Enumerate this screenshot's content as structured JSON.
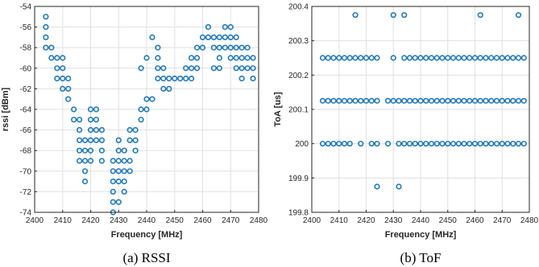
{
  "colors": {
    "marker": "#1f77b4",
    "axis": "#262626",
    "grid": "#dfdfdf"
  },
  "chart_data": [
    {
      "type": "scatter",
      "title": "",
      "caption": "(a) RSSI",
      "xlabel": "Frequency [MHz]",
      "ylabel": "rssi [dBm]",
      "xlim": [
        2400,
        2480
      ],
      "ylim": [
        -74,
        -54
      ],
      "xticks": [
        2400,
        2410,
        2420,
        2430,
        2440,
        2450,
        2460,
        2470,
        2480
      ],
      "yticks": [
        -74,
        -72,
        -70,
        -68,
        -66,
        -64,
        -62,
        -60,
        -58,
        -56,
        -54
      ],
      "grid": true,
      "series": [
        {
          "columns": [
            {
              "x": 2404,
              "y": [
                -55,
                -56,
                -57,
                -58
              ]
            },
            {
              "x": 2406,
              "y": [
                -58,
                -59
              ]
            },
            {
              "x": 2408,
              "y": [
                -59,
                -60,
                -61
              ]
            },
            {
              "x": 2410,
              "y": [
                -59,
                -60,
                -61,
                -62
              ]
            },
            {
              "x": 2412,
              "y": [
                -61,
                -62,
                -63
              ]
            },
            {
              "x": 2414,
              "y": [
                -64,
                -65
              ]
            },
            {
              "x": 2416,
              "y": [
                -65,
                -66,
                -67,
                -68,
                -69
              ]
            },
            {
              "x": 2418,
              "y": [
                -67,
                -68,
                -69,
                -70,
                -71
              ]
            },
            {
              "x": 2420,
              "y": [
                -64,
                -65,
                -66,
                -67,
                -68,
                -69
              ]
            },
            {
              "x": 2422,
              "y": [
                -64,
                -65,
                -66,
                -67
              ]
            },
            {
              "x": 2424,
              "y": [
                -66,
                -67,
                -68,
                -69
              ]
            },
            {
              "x": 2428,
              "y": [
                -69,
                -70,
                -71,
                -72,
                -73,
                -74
              ]
            },
            {
              "x": 2430,
              "y": [
                -67,
                -68,
                -69,
                -70,
                -71,
                -73
              ]
            },
            {
              "x": 2432,
              "y": [
                -68,
                -69,
                -70,
                -71,
                -72
              ]
            },
            {
              "x": 2434,
              "y": [
                -66,
                -67,
                -69,
                -70
              ]
            },
            {
              "x": 2436,
              "y": [
                -66,
                -67,
                -68
              ]
            },
            {
              "x": 2438,
              "y": [
                -60,
                -64,
                -65
              ]
            },
            {
              "x": 2440,
              "y": [
                -59,
                -63,
                -64
              ]
            },
            {
              "x": 2442,
              "y": [
                -57,
                -63
              ]
            },
            {
              "x": 2444,
              "y": [
                -58,
                -59,
                -60,
                -61
              ]
            },
            {
              "x": 2446,
              "y": [
                -60,
                -61,
                -62
              ]
            },
            {
              "x": 2448,
              "y": [
                -61,
                -62
              ]
            },
            {
              "x": 2450,
              "y": [
                -61
              ]
            },
            {
              "x": 2452,
              "y": [
                -61
              ]
            },
            {
              "x": 2454,
              "y": [
                -60,
                -61
              ]
            },
            {
              "x": 2456,
              "y": [
                -59,
                -60,
                -61
              ]
            },
            {
              "x": 2458,
              "y": [
                -58,
                -59,
                -60
              ]
            },
            {
              "x": 2460,
              "y": [
                -57,
                -58
              ]
            },
            {
              "x": 2462,
              "y": [
                -56,
                -57
              ]
            },
            {
              "x": 2464,
              "y": [
                -57,
                -58,
                -60
              ]
            },
            {
              "x": 2466,
              "y": [
                -57,
                -58,
                -59,
                -60
              ]
            },
            {
              "x": 2468,
              "y": [
                -56,
                -57,
                -58
              ]
            },
            {
              "x": 2470,
              "y": [
                -56,
                -57,
                -58,
                -59
              ]
            },
            {
              "x": 2472,
              "y": [
                -57,
                -58,
                -59,
                -60
              ]
            },
            {
              "x": 2474,
              "y": [
                -58,
                -59,
                -60,
                -61
              ]
            },
            {
              "x": 2476,
              "y": [
                -58,
                -59,
                -60
              ]
            },
            {
              "x": 2478,
              "y": [
                -59,
                -60,
                -61
              ]
            }
          ]
        }
      ]
    },
    {
      "type": "scatter",
      "title": "",
      "caption": "(b) ToF",
      "xlabel": "Frequency [MHz]",
      "ylabel": "ToA [us]",
      "xlim": [
        2400,
        2480
      ],
      "ylim": [
        199.8,
        200.4
      ],
      "xticks": [
        2400,
        2410,
        2420,
        2430,
        2440,
        2450,
        2460,
        2470,
        2480
      ],
      "yticks": [
        199.8,
        199.9,
        200,
        200.1,
        200.2,
        200.3,
        200.4
      ],
      "ytick_labels": [
        "199.8",
        "199.9",
        "200",
        "200.1",
        "200.2",
        "200.3",
        "200.4"
      ],
      "grid": true,
      "series": [
        {
          "rows": [
            {
              "y": 200.375,
              "x": [
                2416,
                2430,
                2434,
                2462,
                2476
              ]
            },
            {
              "y": 200.25,
              "x": [
                2404,
                2406,
                2408,
                2410,
                2412,
                2414,
                2416,
                2418,
                2420,
                2422,
                2424,
                2430,
                2434,
                2436,
                2438,
                2440,
                2442,
                2444,
                2446,
                2448,
                2450,
                2452,
                2454,
                2456,
                2458,
                2460,
                2462,
                2464,
                2466,
                2468,
                2470,
                2472,
                2474,
                2476,
                2478
              ]
            },
            {
              "y": 200.125,
              "x": [
                2404,
                2406,
                2408,
                2410,
                2412,
                2414,
                2416,
                2418,
                2420,
                2422,
                2424,
                2428,
                2430,
                2432,
                2434,
                2436,
                2438,
                2440,
                2442,
                2444,
                2446,
                2448,
                2450,
                2452,
                2454,
                2456,
                2458,
                2460,
                2462,
                2464,
                2466,
                2468,
                2470,
                2472,
                2474,
                2476,
                2478
              ]
            },
            {
              "y": 200.0,
              "x": [
                2404,
                2406,
                2408,
                2410,
                2412,
                2414,
                2418,
                2422,
                2424,
                2428,
                2432,
                2434,
                2436,
                2438,
                2440,
                2442,
                2444,
                2446,
                2448,
                2450,
                2452,
                2454,
                2456,
                2458,
                2460,
                2462,
                2464,
                2466,
                2468,
                2470,
                2472,
                2474,
                2476,
                2478
              ]
            },
            {
              "y": 199.875,
              "x": [
                2424,
                2432
              ]
            }
          ]
        }
      ]
    }
  ]
}
